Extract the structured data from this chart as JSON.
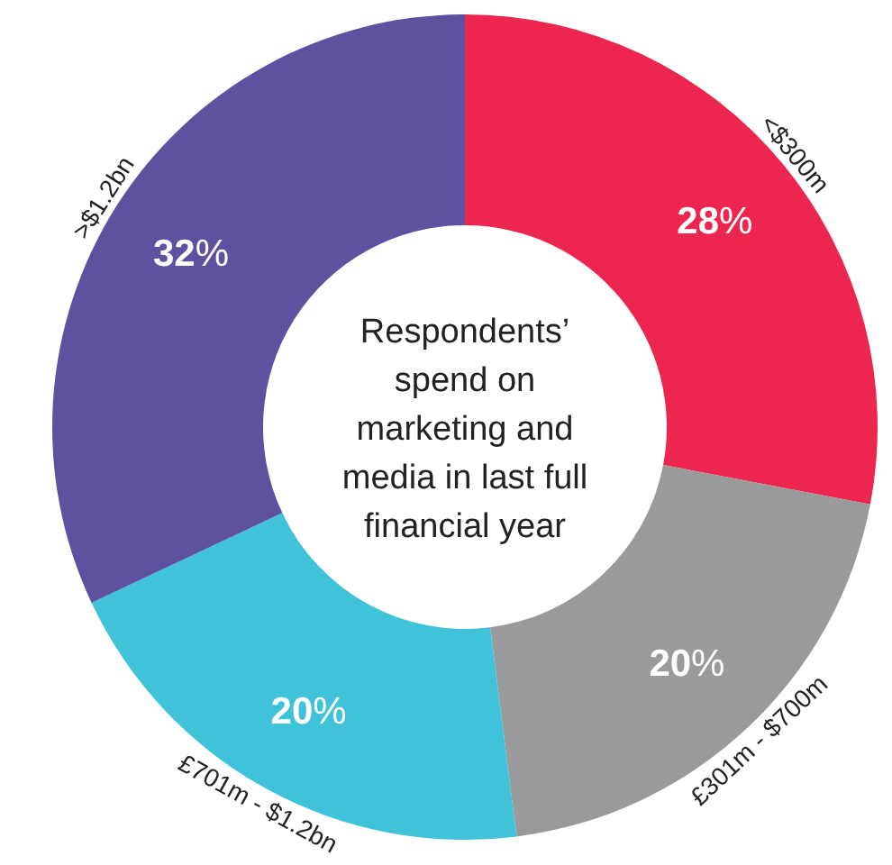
{
  "chart_data": {
    "type": "donut",
    "title": "Respondents’ spend on marketing and media in last full financial year",
    "categories": [
      "<$300m",
      "£301m - $700m",
      "£701m - $1.2bn",
      ">$1.2bn"
    ],
    "values": [
      28,
      20,
      20,
      32
    ],
    "colors": [
      "#ec264f",
      "#989a9c",
      "#40c2d8",
      "#5d51a0"
    ],
    "value_labels": [
      "28%",
      "20%",
      "20%",
      "32%"
    ]
  }
}
